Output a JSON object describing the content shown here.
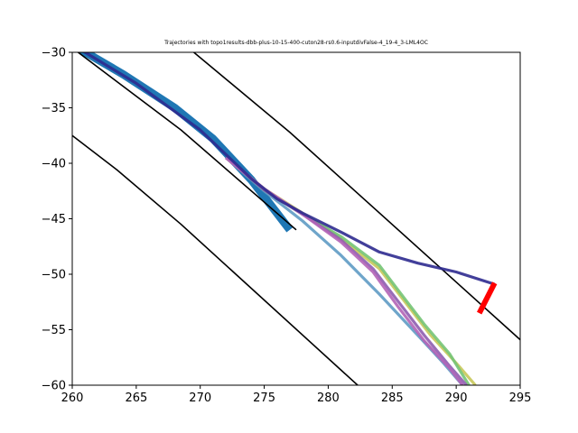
{
  "chart_data": {
    "type": "line",
    "title": "Trajectories with topo1results-dbb-plus-10-15-400-cuton28-rs0.6-inputdivFalse-4_19-4_3-LML4OC",
    "xlabel": "",
    "ylabel": "",
    "xlim": [
      260,
      295
    ],
    "ylim": [
      -60,
      -30
    ],
    "x_ticks": [
      260,
      265,
      270,
      275,
      280,
      285,
      290,
      295
    ],
    "y_ticks": [
      -30,
      -35,
      -40,
      -45,
      -50,
      -55,
      -60
    ],
    "x_tick_labels": [
      "260",
      "265",
      "270",
      "275",
      "280",
      "285",
      "290",
      "295"
    ],
    "y_tick_labels": [
      "−30",
      "−35",
      "−40",
      "−45",
      "−50",
      "−55",
      "−60"
    ],
    "grid": false,
    "legend": "none",
    "lane_boundaries": [
      {
        "color": "#000000",
        "points": [
          [
            269.5,
            -30
          ],
          [
            277,
            -37.2
          ],
          [
            295,
            -55.9
          ]
        ]
      },
      {
        "color": "#000000",
        "points": [
          [
            260,
            -29.6
          ],
          [
            268.5,
            -37
          ],
          [
            277.5,
            -46
          ]
        ]
      },
      {
        "color": "#000000",
        "points": [
          [
            260,
            -37.5
          ],
          [
            263.5,
            -40.6
          ],
          [
            268.5,
            -45.5
          ],
          [
            282.3,
            -60
          ]
        ]
      }
    ],
    "reference_path": {
      "color": "#1f77b4",
      "points": [
        [
          260,
          -29.3
        ],
        [
          264,
          -32
        ],
        [
          268,
          -35
        ],
        [
          271,
          -37.8
        ],
        [
          274,
          -41.5
        ],
        [
          277,
          -46
        ]
      ]
    },
    "trajectories": [
      {
        "color": "#5f9bc4",
        "points": [
          [
            272,
            -39.5
          ],
          [
            275,
            -42.5
          ],
          [
            278,
            -45.2
          ],
          [
            281,
            -48.3
          ],
          [
            284,
            -51.8
          ],
          [
            287,
            -55.5
          ],
          [
            289,
            -58
          ],
          [
            290.5,
            -60
          ]
        ]
      },
      {
        "color": "#c8c85a",
        "points": [
          [
            272,
            -39.5
          ],
          [
            275,
            -42.3
          ],
          [
            278,
            -44.5
          ],
          [
            281,
            -46.8
          ],
          [
            284,
            -49.5
          ],
          [
            286,
            -52.5
          ],
          [
            288,
            -55.5
          ],
          [
            290,
            -58
          ],
          [
            291.5,
            -60
          ]
        ]
      },
      {
        "color": "#74c476",
        "points": [
          [
            272,
            -39.5
          ],
          [
            275,
            -42.4
          ],
          [
            278,
            -44.6
          ],
          [
            281,
            -46.6
          ],
          [
            284,
            -49.2
          ],
          [
            285.5,
            -51.5
          ],
          [
            287.5,
            -54.5
          ],
          [
            289.5,
            -57.2
          ],
          [
            291,
            -60
          ]
        ]
      },
      {
        "color": "#8e5db0",
        "points": [
          [
            272,
            -39.5
          ],
          [
            275,
            -42.4
          ],
          [
            278,
            -44.6
          ],
          [
            281,
            -46.9
          ],
          [
            283.5,
            -49.5
          ],
          [
            285.5,
            -52.5
          ],
          [
            287.5,
            -55.5
          ],
          [
            289.5,
            -58.3
          ],
          [
            290.8,
            -60
          ]
        ]
      },
      {
        "color": "#b264b7",
        "points": [
          [
            272,
            -39.5
          ],
          [
            275,
            -42.3
          ],
          [
            278,
            -44.6
          ],
          [
            281,
            -47.1
          ],
          [
            283.5,
            -49.8
          ],
          [
            285.5,
            -53
          ],
          [
            287.5,
            -56
          ],
          [
            289.5,
            -58.5
          ],
          [
            290.5,
            -60
          ]
        ]
      },
      {
        "color": "#2e2a8f",
        "points": [
          [
            260,
            -29.3
          ],
          [
            265,
            -32.8
          ],
          [
            270,
            -37
          ],
          [
            274,
            -41.4
          ],
          [
            276,
            -43.2
          ],
          [
            278,
            -44.5
          ],
          [
            281,
            -46.2
          ],
          [
            284,
            -48
          ],
          [
            287,
            -49
          ],
          [
            290,
            -49.8
          ],
          [
            293,
            -50.9
          ]
        ]
      }
    ],
    "goal_marker": {
      "color": "#ff0000",
      "points": [
        [
          293,
          -50.8
        ],
        [
          291.8,
          -53.5
        ]
      ]
    },
    "colors": {
      "axis": "#000000",
      "background": "#ffffff"
    }
  }
}
